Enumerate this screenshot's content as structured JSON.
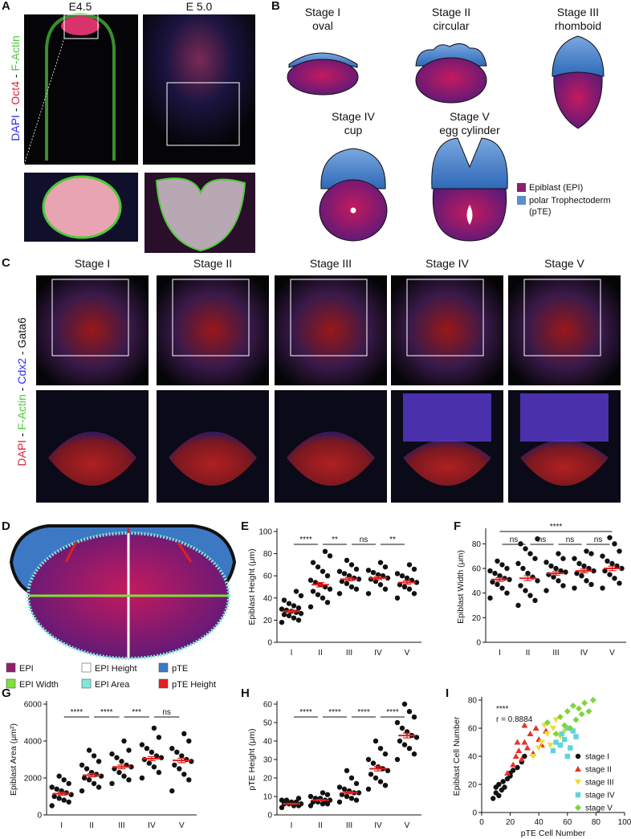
{
  "panel_letters": [
    "A",
    "B",
    "C",
    "D",
    "E",
    "F",
    "G",
    "H",
    "I"
  ],
  "panel_a": {
    "columns": [
      "E4.5",
      "E 5.0"
    ],
    "stain_label": [
      {
        "text": "DAPI",
        "color": "#2a2aff"
      },
      {
        "text": " - ",
        "color": "#111111"
      },
      {
        "text": "Oct4",
        "color": "#e0223a"
      },
      {
        "text": " - ",
        "color": "#111111"
      },
      {
        "text": "F-Actin",
        "color": "#4fc93a"
      }
    ]
  },
  "panel_b": {
    "stages": [
      {
        "title": "Stage I",
        "shape": "oval"
      },
      {
        "title": "Stage II",
        "shape": "circular"
      },
      {
        "title": "Stage III",
        "shape": "rhomboid"
      },
      {
        "title": "Stage IV",
        "shape": "cup"
      },
      {
        "title": "Stage V",
        "shape": "egg cylinder"
      }
    ],
    "legend": [
      {
        "label": "Epiblast (EPI)",
        "color": "#8e1f6f"
      },
      {
        "label": "polar Trophectoderm",
        "color": "#5b8fd0"
      },
      {
        "label": "(pTE)"
      }
    ]
  },
  "panel_c": {
    "columns": [
      "Stage I",
      "Stage II",
      "Stage III",
      "Stage IV",
      "Stage V"
    ],
    "stain_label": [
      {
        "text": "DAPI",
        "color": "#e0223a"
      },
      {
        "text": " - ",
        "color": "#111111"
      },
      {
        "text": "F-Actin",
        "color": "#4fc93a"
      },
      {
        "text": " - ",
        "color": "#111111"
      },
      {
        "text": "Cdx2",
        "color": "#2a2aff"
      },
      {
        "text": " - ",
        "color": "#111111"
      },
      {
        "text": "Gata6",
        "color": "#111111"
      }
    ]
  },
  "panel_d": {
    "legend": [
      {
        "label": "EPI",
        "color": "#8e1f6f"
      },
      {
        "label": "EPI Height",
        "color": "#ffffff"
      },
      {
        "label": "pTE",
        "color": "#3d78c4"
      },
      {
        "label": "EPI Width",
        "color": "#7ee03a"
      },
      {
        "label": "EPI Area",
        "color": "#7fe8d8"
      },
      {
        "label": "pTE Height",
        "color": "#e0201f"
      }
    ]
  },
  "chart_data": [
    {
      "type": "dotplot",
      "ylabel": "Epiblast Height (μm)",
      "categories": [
        "I",
        "II",
        "III",
        "IV",
        "V"
      ],
      "values": [
        [
          18,
          20,
          22,
          24,
          25,
          26,
          27,
          28,
          29,
          30,
          31,
          33,
          35,
          38,
          42,
          46
        ],
        [
          32,
          36,
          40,
          43,
          46,
          48,
          50,
          52,
          54,
          56,
          60,
          64,
          68,
          72,
          78,
          82
        ],
        [
          44,
          48,
          50,
          53,
          55,
          57,
          58,
          60,
          62,
          64,
          66,
          70,
          74
        ],
        [
          44,
          48,
          52,
          55,
          57,
          58,
          60,
          61,
          63,
          65,
          68,
          72
        ],
        [
          40,
          44,
          48,
          50,
          52,
          54,
          56,
          58,
          60,
          62,
          66,
          70
        ]
      ],
      "means": [
        28,
        52,
        57,
        58,
        54
      ],
      "sems": [
        1,
        2,
        1.5,
        1.5,
        1.5
      ],
      "ylim": [
        0,
        100
      ],
      "yticks": [
        0,
        20,
        40,
        60,
        80,
        100
      ],
      "comparisons": [
        {
          "pair": [
            "I",
            "II"
          ],
          "label": "****"
        },
        {
          "pair": [
            "II",
            "III"
          ],
          "label": "**"
        },
        {
          "pair": [
            "III",
            "IV"
          ],
          "label": "ns"
        },
        {
          "pair": [
            "IV",
            "V"
          ],
          "label": "**"
        }
      ]
    },
    {
      "type": "dotplot",
      "ylabel": "Epiblast Width (μm)",
      "categories": [
        "I",
        "II",
        "III",
        "IV",
        "V"
      ],
      "values": [
        [
          36,
          40,
          44,
          47,
          49,
          51,
          52,
          54,
          56,
          58,
          60,
          63,
          66
        ],
        [
          30,
          34,
          38,
          42,
          46,
          50,
          53,
          56,
          60,
          64,
          68,
          72,
          76,
          80,
          84
        ],
        [
          42,
          46,
          50,
          53,
          55,
          57,
          58,
          60,
          62,
          65,
          68,
          72
        ],
        [
          44,
          47,
          50,
          54,
          56,
          58,
          60,
          62,
          64,
          68,
          72,
          74
        ],
        [
          44,
          48,
          52,
          55,
          58,
          60,
          62,
          64,
          66,
          70,
          74,
          80,
          85
        ]
      ],
      "means": [
        51,
        52,
        56,
        58,
        60
      ],
      "sems": [
        1.5,
        2,
        1.5,
        1.5,
        1.8
      ],
      "ylim": [
        0,
        90
      ],
      "yticks": [
        0,
        20,
        40,
        60,
        80
      ],
      "comparisons": [
        {
          "pair": [
            "I",
            "II"
          ],
          "label": "ns"
        },
        {
          "pair": [
            "II",
            "III"
          ],
          "label": "ns"
        },
        {
          "pair": [
            "III",
            "IV"
          ],
          "label": "ns"
        },
        {
          "pair": [
            "IV",
            "V"
          ],
          "label": "ns"
        },
        {
          "pair": [
            "I",
            "V"
          ],
          "label": "****"
        }
      ]
    },
    {
      "type": "dotplot",
      "ylabel": "Epiblast Area (μm²)",
      "categories": [
        "I",
        "II",
        "III",
        "IV",
        "V"
      ],
      "values": [
        [
          500,
          700,
          800,
          900,
          1000,
          1100,
          1200,
          1300,
          1400,
          1500,
          1700,
          1900,
          2100
        ],
        [
          1300,
          1500,
          1700,
          1900,
          2000,
          2100,
          2200,
          2300,
          2500,
          2700,
          2900,
          3200,
          3500
        ],
        [
          1700,
          1900,
          2100,
          2300,
          2500,
          2600,
          2700,
          2900,
          3100,
          3300,
          3500,
          4000
        ],
        [
          2000,
          2300,
          2600,
          2800,
          3000,
          3100,
          3200,
          3400,
          3600,
          3800,
          4200,
          4700
        ],
        [
          1300,
          1900,
          2200,
          2500,
          2700,
          2900,
          3000,
          3200,
          3400,
          3600,
          4000,
          4400
        ]
      ],
      "means": [
        1150,
        2150,
        2600,
        3050,
        2950
      ],
      "sems": [
        80,
        90,
        100,
        110,
        120
      ],
      "ylim": [
        0,
        6000
      ],
      "yticks": [
        0,
        2000,
        4000,
        6000
      ],
      "comparisons": [
        {
          "pair": [
            "I",
            "II"
          ],
          "label": "****"
        },
        {
          "pair": [
            "II",
            "III"
          ],
          "label": "****"
        },
        {
          "pair": [
            "III",
            "IV"
          ],
          "label": "***"
        },
        {
          "pair": [
            "IV",
            "V"
          ],
          "label": "ns"
        }
      ]
    },
    {
      "type": "dotplot",
      "ylabel": "pTE Height (μm)",
      "categories": [
        "I",
        "II",
        "III",
        "IV",
        "V"
      ],
      "values": [
        [
          4,
          5,
          5,
          6,
          6,
          6,
          7,
          7,
          8,
          8,
          9
        ],
        [
          5,
          6,
          6,
          7,
          7,
          8,
          8,
          9,
          9,
          10,
          11,
          12
        ],
        [
          7,
          8,
          9,
          10,
          11,
          12,
          12,
          13,
          14,
          15,
          17,
          20,
          24
        ],
        [
          14,
          16,
          18,
          20,
          22,
          24,
          25,
          26,
          28,
          30,
          33,
          36,
          40
        ],
        [
          30,
          33,
          36,
          38,
          40,
          42,
          43,
          45,
          47,
          50,
          53,
          56,
          60
        ]
      ],
      "means": [
        6,
        8,
        12,
        25,
        43
      ],
      "sems": [
        0.3,
        0.4,
        0.6,
        1.2,
        1.3
      ],
      "ylim": [
        0,
        60
      ],
      "yticks": [
        0,
        10,
        20,
        30,
        40,
        50,
        60
      ],
      "comparisons": [
        {
          "pair": [
            "I",
            "II"
          ],
          "label": "****"
        },
        {
          "pair": [
            "II",
            "III"
          ],
          "label": "****"
        },
        {
          "pair": [
            "III",
            "IV"
          ],
          "label": "****"
        },
        {
          "pair": [
            "IV",
            "V"
          ],
          "label": "****"
        }
      ]
    },
    {
      "type": "scatter",
      "xlabel": "pTE Cell Number",
      "ylabel": "Epiblast Cell Number",
      "xlim": [
        0,
        100
      ],
      "xticks": [
        0,
        20,
        40,
        60,
        80,
        100
      ],
      "ylim": [
        0,
        80
      ],
      "yticks": [
        0,
        20,
        40,
        60,
        80
      ],
      "annotations": [
        "****",
        "r = 0.8884"
      ],
      "series": [
        {
          "name": "stage I",
          "color": "#111111",
          "marker": "circle",
          "x": [
            8,
            10,
            10,
            12,
            12,
            14,
            15,
            16,
            18,
            20,
            22,
            25,
            28,
            30,
            20
          ],
          "values": [
            10,
            14,
            18,
            12,
            20,
            16,
            22,
            18,
            24,
            28,
            30,
            32,
            36,
            40,
            26
          ]
        },
        {
          "name": "stage II",
          "color": "#e8312b",
          "marker": "triangle-up",
          "x": [
            18,
            22,
            24,
            26,
            28,
            30,
            32,
            34,
            36,
            38,
            40,
            42,
            45,
            30,
            25
          ],
          "values": [
            28,
            34,
            40,
            44,
            38,
            50,
            46,
            56,
            42,
            60,
            52,
            48,
            58,
            62,
            50
          ]
        },
        {
          "name": "stage III",
          "color": "#e8e02e",
          "marker": "triangle-down",
          "x": [
            36,
            40,
            42,
            44,
            46,
            48,
            50,
            52,
            55,
            58
          ],
          "values": [
            40,
            46,
            50,
            62,
            56,
            48,
            60,
            66,
            54,
            58
          ]
        },
        {
          "name": "stage IV",
          "color": "#5fd3e0",
          "marker": "square",
          "x": [
            50,
            52,
            55,
            56,
            58,
            60,
            62,
            64,
            66,
            60
          ],
          "values": [
            44,
            50,
            48,
            56,
            52,
            60,
            46,
            58,
            54,
            40
          ]
        },
        {
          "name": "stage V",
          "color": "#7dd63a",
          "marker": "diamond",
          "x": [
            46,
            52,
            55,
            58,
            60,
            62,
            64,
            66,
            68,
            70,
            72,
            75,
            78
          ],
          "values": [
            64,
            56,
            68,
            62,
            72,
            60,
            76,
            66,
            74,
            70,
            78,
            72,
            80
          ]
        }
      ]
    }
  ]
}
